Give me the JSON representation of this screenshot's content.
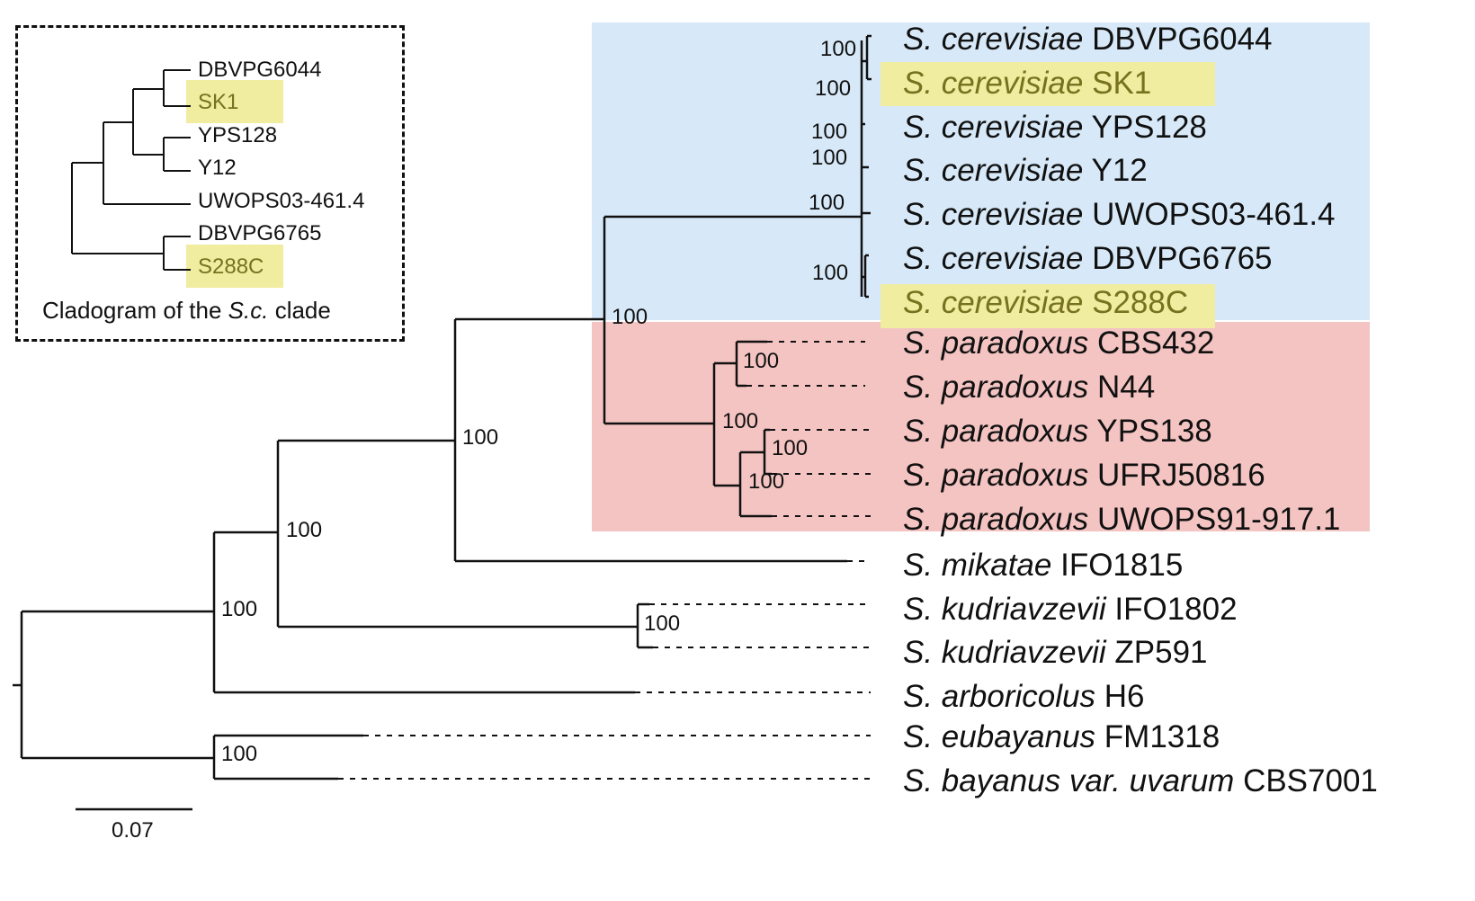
{
  "colors": {
    "cerevisiae_region": "#d7e9f8",
    "paradoxus_region": "#f4c4c2",
    "highlight": "#f4f0a0",
    "highlight_text": "#77721e",
    "line": "#111111"
  },
  "taxa": [
    {
      "genus": "S. cerevisiae",
      "strain": "DBVPG6044"
    },
    {
      "genus": "S. cerevisiae",
      "strain": "SK1"
    },
    {
      "genus": "S. cerevisiae",
      "strain": "YPS128"
    },
    {
      "genus": "S. cerevisiae",
      "strain": "Y12"
    },
    {
      "genus": "S. cerevisiae",
      "strain": "UWOPS03-461.4"
    },
    {
      "genus": "S. cerevisiae",
      "strain": "DBVPG6765"
    },
    {
      "genus": "S. cerevisiae",
      "strain": "S288C"
    },
    {
      "genus": "S. paradoxus",
      "strain": "CBS432"
    },
    {
      "genus": "S. paradoxus",
      "strain": "N44"
    },
    {
      "genus": "S. paradoxus",
      "strain": "YPS138"
    },
    {
      "genus": "S. paradoxus",
      "strain": "UFRJ50816"
    },
    {
      "genus": "S. paradoxus",
      "strain": "UWOPS91-917.1"
    },
    {
      "genus": "S. mikatae",
      "strain": "IFO1815"
    },
    {
      "genus": "S. kudriavzevii",
      "strain": "IFO1802"
    },
    {
      "genus": "S. kudriavzevii",
      "strain": "ZP591"
    },
    {
      "genus": "S. arboricolus",
      "strain": "H6"
    },
    {
      "genus": "S. eubayanus",
      "strain": "FM1318"
    },
    {
      "genus": "S. bayanus var. uvarum",
      "strain": "CBS7001"
    }
  ],
  "bootstrap": [
    "100",
    "100",
    "100",
    "100",
    "100",
    "100",
    "100",
    "100",
    "100",
    "100",
    "100",
    "100",
    "100",
    "100",
    "100",
    "100"
  ],
  "inset": {
    "labels": [
      "DBVPG6044",
      "SK1",
      "YPS128",
      "Y12",
      "UWOPS03-461.4",
      "DBVPG6765",
      "S288C"
    ],
    "caption_prefix": "Cladogram of the ",
    "caption_italic": "S.c.",
    "caption_suffix": " clade"
  },
  "scale_bar": "0.07"
}
